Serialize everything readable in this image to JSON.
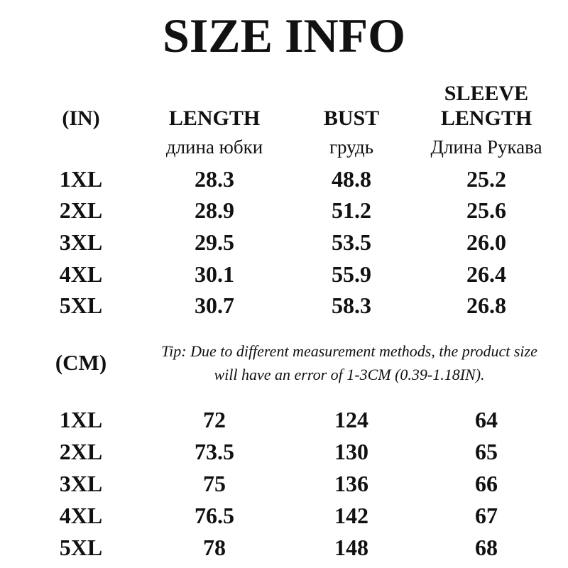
{
  "title": "SIZE INFO",
  "colors": {
    "background": "#ffffff",
    "text": "#111111"
  },
  "chart_data": {
    "type": "table",
    "title": "SIZE INFO",
    "units": {
      "inches": "(IN)",
      "centimeters": "(CM)"
    },
    "columns": {
      "size": {
        "en": "",
        "ru": ""
      },
      "length": {
        "en": "LENGTH",
        "ru": "длина юбки"
      },
      "bust": {
        "en": "BUST",
        "ru": "грудь"
      },
      "sleeve": {
        "en_line1": "SLEEVE",
        "en_line2": "LENGTH",
        "ru": "Длина Рукава"
      }
    },
    "in_rows": [
      {
        "size": "1XL",
        "length": "28.3",
        "bust": "48.8",
        "sleeve": "25.2"
      },
      {
        "size": "2XL",
        "length": "28.9",
        "bust": "51.2",
        "sleeve": "25.6"
      },
      {
        "size": "3XL",
        "length": "29.5",
        "bust": "53.5",
        "sleeve": "26.0"
      },
      {
        "size": "4XL",
        "length": "30.1",
        "bust": "55.9",
        "sleeve": "26.4"
      },
      {
        "size": "5XL",
        "length": "30.7",
        "bust": "58.3",
        "sleeve": "26.8"
      }
    ],
    "tip": {
      "line1": "Tip: Due to different measurement methods, the product size",
      "line2": "will have an error of 1-3CM (0.39-1.18IN)."
    },
    "cm_rows": [
      {
        "size": "1XL",
        "length": "72",
        "bust": "124",
        "sleeve": "64"
      },
      {
        "size": "2XL",
        "length": "73.5",
        "bust": "130",
        "sleeve": "65"
      },
      {
        "size": "3XL",
        "length": "75",
        "bust": "136",
        "sleeve": "66"
      },
      {
        "size": "4XL",
        "length": "76.5",
        "bust": "142",
        "sleeve": "67"
      },
      {
        "size": "5XL",
        "length": "78",
        "bust": "148",
        "sleeve": "68"
      }
    ]
  }
}
